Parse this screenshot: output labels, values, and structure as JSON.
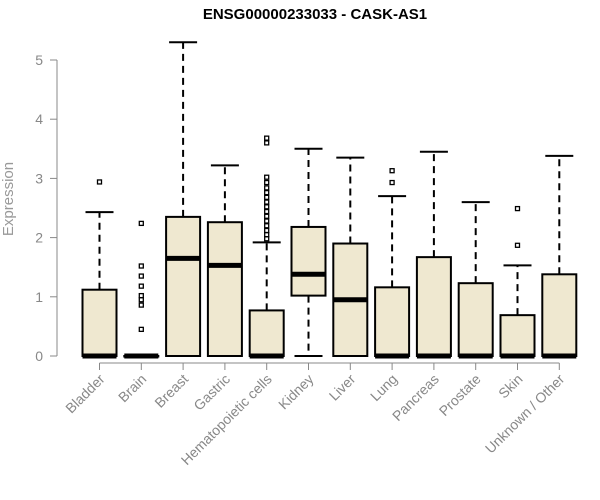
{
  "chart_data": {
    "type": "box",
    "title": "ENSG00000233033 - CASK-AS1",
    "xlabel": "",
    "ylabel": "Expression",
    "ylim": [
      0,
      5
    ],
    "y_ticks": [
      0,
      1,
      2,
      3,
      4,
      5
    ],
    "grid": false,
    "colors": {
      "box_fill": "#efe8d0",
      "stroke": "#000000",
      "axis": "#888888"
    },
    "categories": [
      "Bladder",
      "Brain",
      "Breast",
      "Gastric",
      "Hematopoietic cells",
      "Kidney",
      "Liver",
      "Lung",
      "Pancreas",
      "Prostate",
      "Skin",
      "Unknown / Other"
    ],
    "boxes": [
      {
        "category": "Bladder",
        "min": 0,
        "q1": 0,
        "median": 0,
        "q3": 1.12,
        "max": 2.43,
        "outliers": [
          2.94
        ]
      },
      {
        "category": "Brain",
        "min": 0,
        "q1": 0,
        "median": 0,
        "q3": 0,
        "max": 0,
        "outliers": [
          0.45,
          0.86,
          0.95,
          1.02,
          1.18,
          1.35,
          1.52,
          2.24
        ]
      },
      {
        "category": "Breast",
        "min": 0,
        "q1": 0,
        "median": 1.65,
        "q3": 2.35,
        "max": 5.3,
        "outliers": []
      },
      {
        "category": "Gastric",
        "min": 0,
        "q1": 0,
        "median": 1.53,
        "q3": 2.26,
        "max": 3.22,
        "outliers": []
      },
      {
        "category": "Hematopoietic cells",
        "min": 0,
        "q1": 0,
        "median": 0,
        "q3": 0.77,
        "max": 1.92,
        "outliers": [
          1.98,
          2.05,
          2.12,
          2.2,
          2.28,
          2.36,
          2.44,
          2.52,
          2.6,
          2.68,
          2.76,
          2.84,
          2.93,
          3.02,
          3.6,
          3.68
        ]
      },
      {
        "category": "Kidney",
        "min": 0,
        "q1": 1.02,
        "median": 1.38,
        "q3": 2.18,
        "max": 3.5,
        "outliers": []
      },
      {
        "category": "Liver",
        "min": 0,
        "q1": 0,
        "median": 0.95,
        "q3": 1.9,
        "max": 3.35,
        "outliers": []
      },
      {
        "category": "Lung",
        "min": 0,
        "q1": 0,
        "median": 0,
        "q3": 1.16,
        "max": 2.7,
        "outliers": [
          2.93,
          3.13
        ]
      },
      {
        "category": "Pancreas",
        "min": 0,
        "q1": 0,
        "median": 0,
        "q3": 1.67,
        "max": 3.45,
        "outliers": []
      },
      {
        "category": "Prostate",
        "min": 0,
        "q1": 0,
        "median": 0,
        "q3": 1.23,
        "max": 2.6,
        "outliers": []
      },
      {
        "category": "Skin",
        "min": 0,
        "q1": 0,
        "median": 0,
        "q3": 0.69,
        "max": 1.53,
        "outliers": [
          1.87,
          2.49
        ]
      },
      {
        "category": "Unknown / Other",
        "min": 0,
        "q1": 0,
        "median": 0,
        "q3": 1.38,
        "max": 3.38,
        "outliers": []
      }
    ]
  }
}
